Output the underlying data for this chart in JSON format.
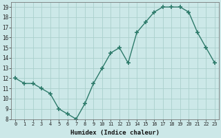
{
  "x": [
    0,
    1,
    2,
    3,
    4,
    5,
    6,
    7,
    8,
    9,
    10,
    11,
    12,
    13,
    14,
    15,
    16,
    17,
    18,
    19,
    20,
    21,
    22,
    23
  ],
  "y": [
    12,
    11.5,
    11.5,
    11,
    10.5,
    9,
    8.5,
    8,
    9.5,
    11.5,
    13,
    14.5,
    15,
    13.5,
    16.5,
    17.5,
    18.5,
    19,
    19,
    19,
    18.5,
    16.5,
    15,
    13.5
  ],
  "xlabel": "Humidex (Indice chaleur)",
  "ylim": [
    8,
    19.5
  ],
  "xlim": [
    -0.5,
    23.5
  ],
  "yticks": [
    8,
    9,
    10,
    11,
    12,
    13,
    14,
    15,
    16,
    17,
    18,
    19
  ],
  "xticks": [
    0,
    1,
    2,
    3,
    4,
    5,
    6,
    7,
    8,
    9,
    10,
    11,
    12,
    13,
    14,
    15,
    16,
    17,
    18,
    19,
    20,
    21,
    22,
    23
  ],
  "line_color": "#2d7a6a",
  "bg_color": "#cce8e8",
  "grid_color": "#aad0cc"
}
